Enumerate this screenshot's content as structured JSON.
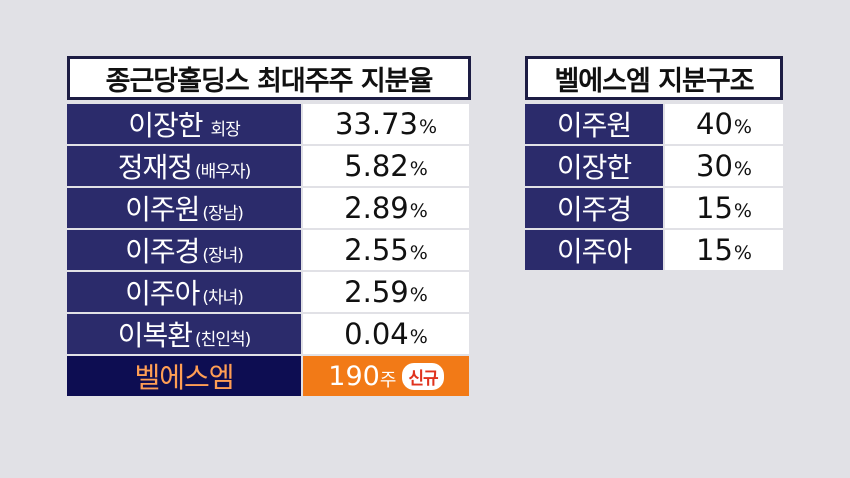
{
  "left_table": {
    "title": "종근당홀딩스 최대주주 지분율",
    "rows": [
      {
        "name": "이장한",
        "note": "회장",
        "value": "33.73",
        "unit": "%"
      },
      {
        "name": "정재정",
        "note": "(배우자)",
        "value": "5.82",
        "unit": "%"
      },
      {
        "name": "이주원",
        "note": "(장남)",
        "value": "2.89",
        "unit": "%"
      },
      {
        "name": "이주경",
        "note": "(장녀)",
        "value": "2.55",
        "unit": "%"
      },
      {
        "name": "이주아",
        "note": "(차녀)",
        "value": "2.59",
        "unit": "%"
      },
      {
        "name": "이복환",
        "note": "(친인척)",
        "value": "0.04",
        "unit": "%"
      }
    ],
    "special_row": {
      "name": "벨에스엠",
      "value": "190",
      "unit": "주",
      "badge": "신규"
    }
  },
  "right_table": {
    "title": "벨에스엠 지분구조",
    "rows": [
      {
        "name": "이주원",
        "value": "40",
        "unit": "%"
      },
      {
        "name": "이장한",
        "value": "30",
        "unit": "%"
      },
      {
        "name": "이주경",
        "value": "15",
        "unit": "%"
      },
      {
        "name": "이주아",
        "value": "15",
        "unit": "%"
      }
    ]
  },
  "colors": {
    "name_bg": "#2b2b6b",
    "special_name_bg": "#0d0d52",
    "special_name_text": "#ff9e54",
    "special_value_bg": "#f27a17",
    "badge_text": "#e0331e"
  }
}
